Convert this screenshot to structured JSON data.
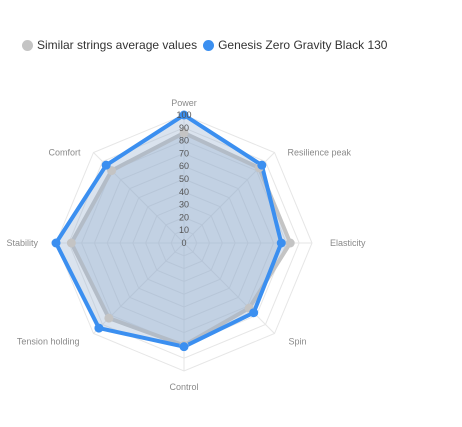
{
  "chart_data": {
    "type": "radar",
    "axes": [
      "Power",
      "Resilience peak",
      "Elasticity",
      "Spin",
      "Control",
      "Tension holding",
      "Stability",
      "Comfort"
    ],
    "ticks": [
      "0",
      "10",
      "20",
      "30",
      "40",
      "50",
      "60",
      "70",
      "80",
      "90",
      "100"
    ],
    "rlim": [
      0,
      100
    ],
    "legend_position": "top-left",
    "series": [
      {
        "name": "Similar strings average values",
        "color": "#c4c4c4",
        "values": [
          86,
          83,
          83,
          72,
          80,
          83,
          88,
          80
        ]
      },
      {
        "name": "Genesis Zero Gravity Black 130",
        "color": "#3b8ff0",
        "values": [
          100,
          86,
          76,
          77,
          81,
          94,
          100,
          86
        ]
      }
    ]
  }
}
